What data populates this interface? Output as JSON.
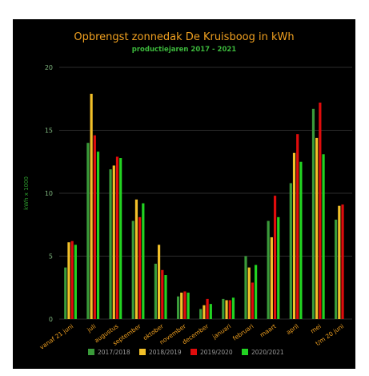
{
  "chart_data": {
    "type": "bar",
    "title": "Opbrengst zonnedak De Kruisboog in kWh",
    "subtitle": "productiejaren 2017 - 2021",
    "xlabel": "",
    "ylabel": "kWh x 1000",
    "ylim": [
      0,
      20
    ],
    "yticks": [
      0,
      5,
      10,
      15,
      20
    ],
    "grid": true,
    "legend_position": "bottom",
    "categories": [
      "vanaf 21 juni",
      "juli",
      "augustus",
      "september",
      "oktober",
      "november",
      "december",
      "januari",
      "februari",
      "maart",
      "april",
      "mei",
      "t/m 20 juni"
    ],
    "series": [
      {
        "name": "2017/2018",
        "color": "#3a9b3a",
        "values": [
          4.1,
          14.0,
          11.9,
          7.8,
          4.4,
          1.8,
          0.8,
          1.6,
          5.0,
          7.8,
          10.8,
          16.7,
          7.9
        ]
      },
      {
        "name": "2018/2019",
        "color": "#f2c029",
        "values": [
          6.1,
          17.9,
          12.2,
          9.5,
          5.9,
          2.1,
          1.1,
          1.5,
          4.1,
          6.5,
          13.2,
          14.4,
          9.0
        ]
      },
      {
        "name": "2019/2020",
        "color": "#e00c0c",
        "values": [
          6.2,
          14.6,
          12.9,
          8.1,
          3.9,
          2.2,
          1.6,
          1.5,
          2.9,
          9.8,
          14.7,
          17.2,
          9.1
        ]
      },
      {
        "name": "2020/2021",
        "color": "#22d322",
        "values": [
          5.9,
          13.3,
          12.8,
          9.2,
          3.5,
          2.1,
          1.2,
          1.7,
          4.3,
          8.1,
          12.5,
          13.1,
          null
        ]
      }
    ]
  }
}
